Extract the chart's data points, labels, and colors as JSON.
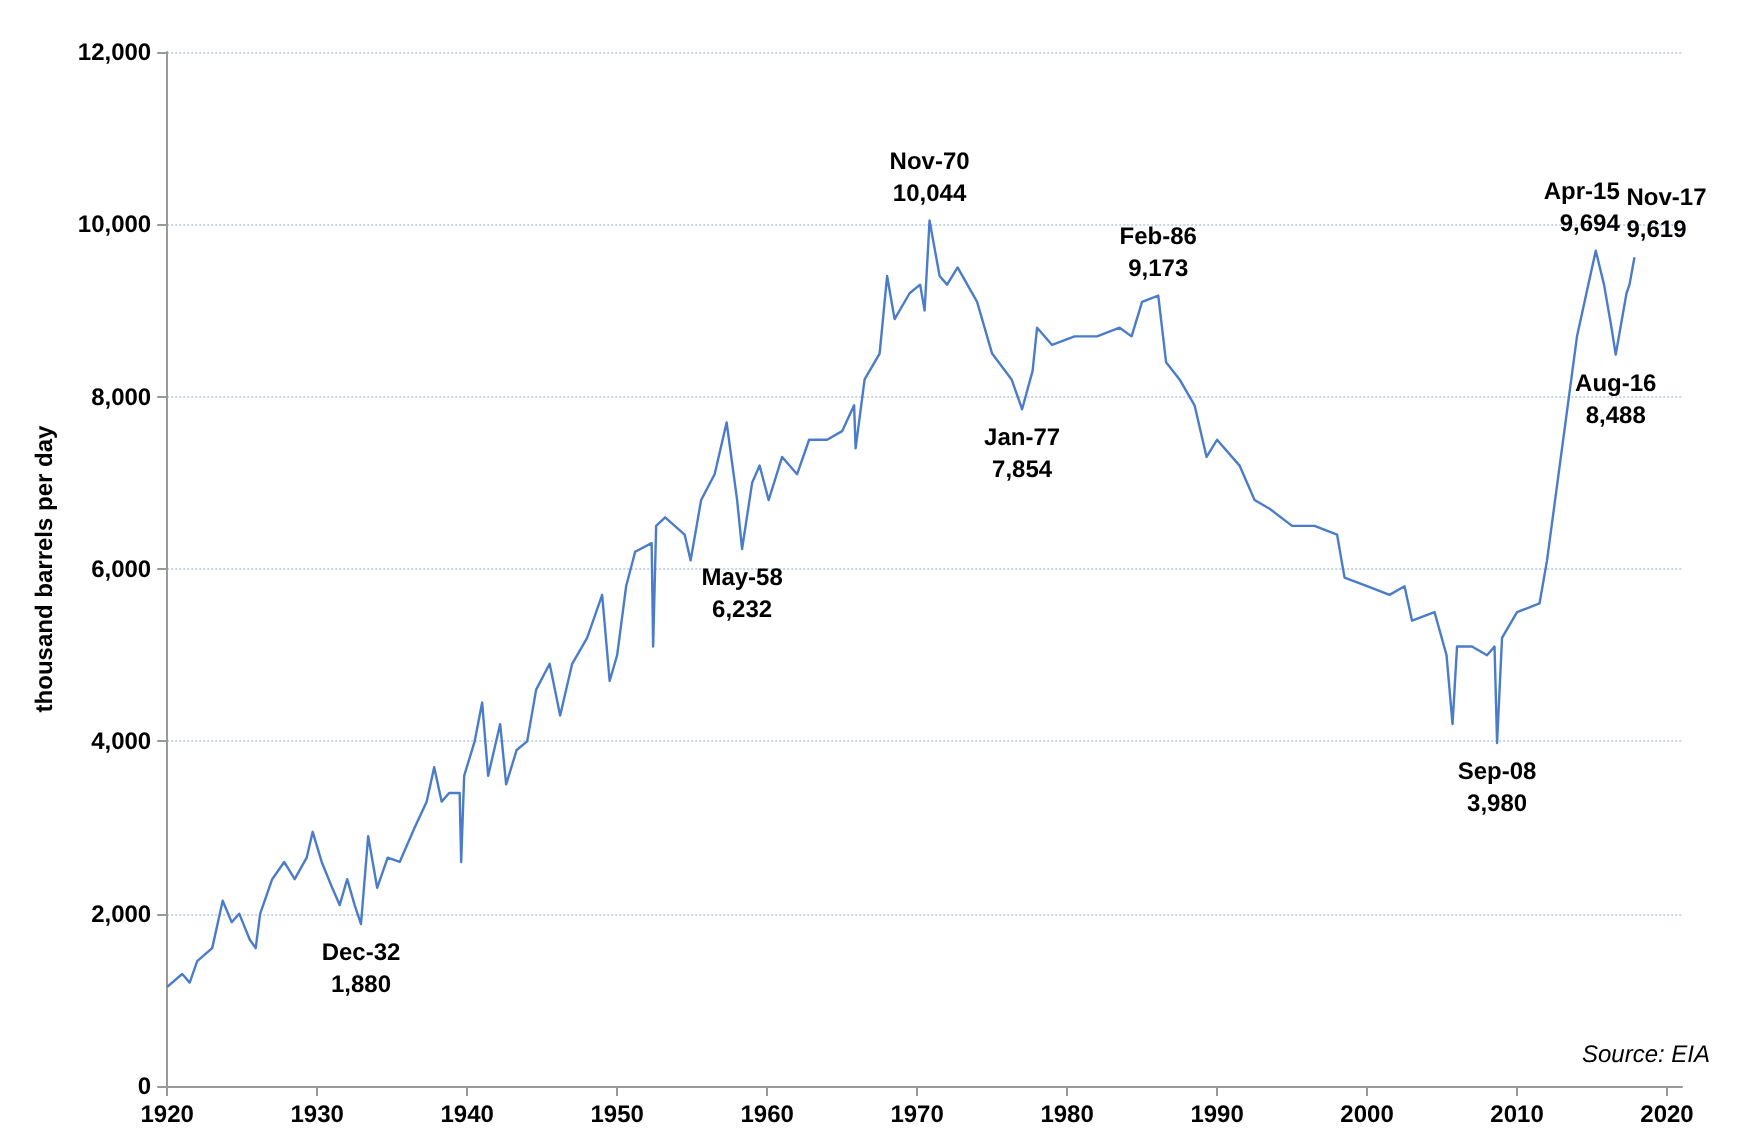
{
  "chart_data": {
    "type": "line",
    "ylabel": "thousand barrels per day",
    "series": [
      {
        "color": "#4a7cc9",
        "x": [
          1920,
          1921,
          1921.5,
          1922,
          1923,
          1923.7,
          1924.3,
          1924.8,
          1925.5,
          1925.9,
          1926.2,
          1927,
          1927.8,
          1928.5,
          1929.3,
          1929.7,
          1930.3,
          1931,
          1931.5,
          1932,
          1932.5,
          1932.92,
          1933.4,
          1934,
          1934.7,
          1935.5,
          1936.5,
          1937.3,
          1937.8,
          1938.3,
          1938.8,
          1939.5,
          1939.6,
          1939.8,
          1940.5,
          1941,
          1941.4,
          1942.2,
          1942.6,
          1943.3,
          1944,
          1944.6,
          1945.5,
          1946.2,
          1947,
          1948,
          1949,
          1949.5,
          1950,
          1950.6,
          1951.2,
          1952.3,
          1952.4,
          1952.6,
          1953.2,
          1954.5,
          1954.9,
          1955.6,
          1956.5,
          1957.3,
          1958,
          1958.33,
          1959,
          1959.5,
          1960.1,
          1961,
          1962,
          1962.8,
          1964,
          1965,
          1965.8,
          1965.9,
          1966.5,
          1967.5,
          1968,
          1968.5,
          1969.5,
          1970.2,
          1970.5,
          1970.83,
          1971.5,
          1972,
          1972.7,
          1974,
          1975,
          1976.3,
          1977,
          1977.7,
          1978,
          1979,
          1980.5,
          1982,
          1983.5,
          1984.3,
          1985,
          1986.08,
          1986.6,
          1987.5,
          1988.5,
          1989.3,
          1990,
          1991.5,
          1992.5,
          1993.5,
          1995,
          1996.5,
          1998,
          1998.5,
          2000,
          2001.5,
          2002.5,
          2003,
          2004.5,
          2005.3,
          2005.7,
          2006,
          2007,
          2008,
          2008.5,
          2008.67,
          2009,
          2010,
          2011.5,
          2012,
          2013,
          2014,
          2015.25,
          2015.8,
          2016.3,
          2016.58,
          2017.3,
          2017.5,
          2017.83
        ],
        "values": [
          1150,
          1300,
          1200,
          1450,
          1600,
          2150,
          1900,
          2000,
          1700,
          1600,
          2000,
          2400,
          2600,
          2400,
          2650,
          2950,
          2600,
          2300,
          2100,
          2400,
          2100,
          1880,
          2900,
          2300,
          2650,
          2600,
          3000,
          3300,
          3700,
          3300,
          3400,
          3400,
          2600,
          3600,
          4000,
          4450,
          3600,
          4200,
          3500,
          3900,
          4000,
          4600,
          4900,
          4300,
          4900,
          5200,
          5700,
          4700,
          5000,
          5800,
          6200,
          6300,
          5100,
          6500,
          6600,
          6400,
          6100,
          6800,
          7100,
          7700,
          6800,
          6232,
          7000,
          7200,
          6800,
          7300,
          7100,
          7500,
          7500,
          7600,
          7900,
          7400,
          8200,
          8500,
          9400,
          8900,
          9200,
          9300,
          9000,
          10044,
          9400,
          9300,
          9500,
          9100,
          8500,
          8200,
          7854,
          8300,
          8800,
          8600,
          8700,
          8700,
          8800,
          8700,
          9100,
          9173,
          8400,
          8200,
          7900,
          7300,
          7500,
          7200,
          6800,
          6700,
          6500,
          6500,
          6400,
          5900,
          5800,
          5700,
          5800,
          5400,
          5500,
          5000,
          4200,
          5100,
          5100,
          5000,
          5100,
          3980,
          5200,
          5500,
          5600,
          6100,
          7400,
          8700,
          9694,
          9300,
          8800,
          8488,
          9200,
          9300,
          9619
        ]
      }
    ],
    "xlim": [
      1920,
      2021
    ],
    "xticks": [
      1920,
      1930,
      1940,
      1950,
      1960,
      1970,
      1980,
      1990,
      2000,
      2010,
      2020
    ],
    "ylim": [
      0,
      12000
    ],
    "yticks": [
      {
        "value": 0,
        "label": "0"
      },
      {
        "value": 2000,
        "label": "2,000"
      },
      {
        "value": 4000,
        "label": "4,000"
      },
      {
        "value": 6000,
        "label": "6,000"
      },
      {
        "value": 8000,
        "label": "8,000"
      },
      {
        "value": 10000,
        "label": "10,000"
      },
      {
        "value": 12000,
        "label": "12,000"
      }
    ],
    "grid": "y",
    "marker": "none",
    "line_style": "solid",
    "annotations": [
      {
        "text": "Dec-32\n1,880",
        "x": 1932.92,
        "y": 1880
      },
      {
        "text": "May-58\n6,232",
        "x": 1958.33,
        "y": 6232
      },
      {
        "text": "Nov-70\n10,044",
        "x": 1970.83,
        "y": 10044
      },
      {
        "text": "Jan-77\n7,854",
        "x": 1977,
        "y": 7854
      },
      {
        "text": "Feb-86\n9,173",
        "x": 1986.08,
        "y": 9173
      },
      {
        "text": "Sep-08\n3,980",
        "x": 2008.67,
        "y": 3980
      },
      {
        "text": "Apr-15\n9,694",
        "x": 2015.25,
        "y": 9694
      },
      {
        "text": "Aug-16\n8,488",
        "x": 2016.58,
        "y": 8488
      },
      {
        "text": "Nov-17\n9,619",
        "x": 2017.83,
        "y": 9619
      },
      "Source: EIA"
    ]
  }
}
